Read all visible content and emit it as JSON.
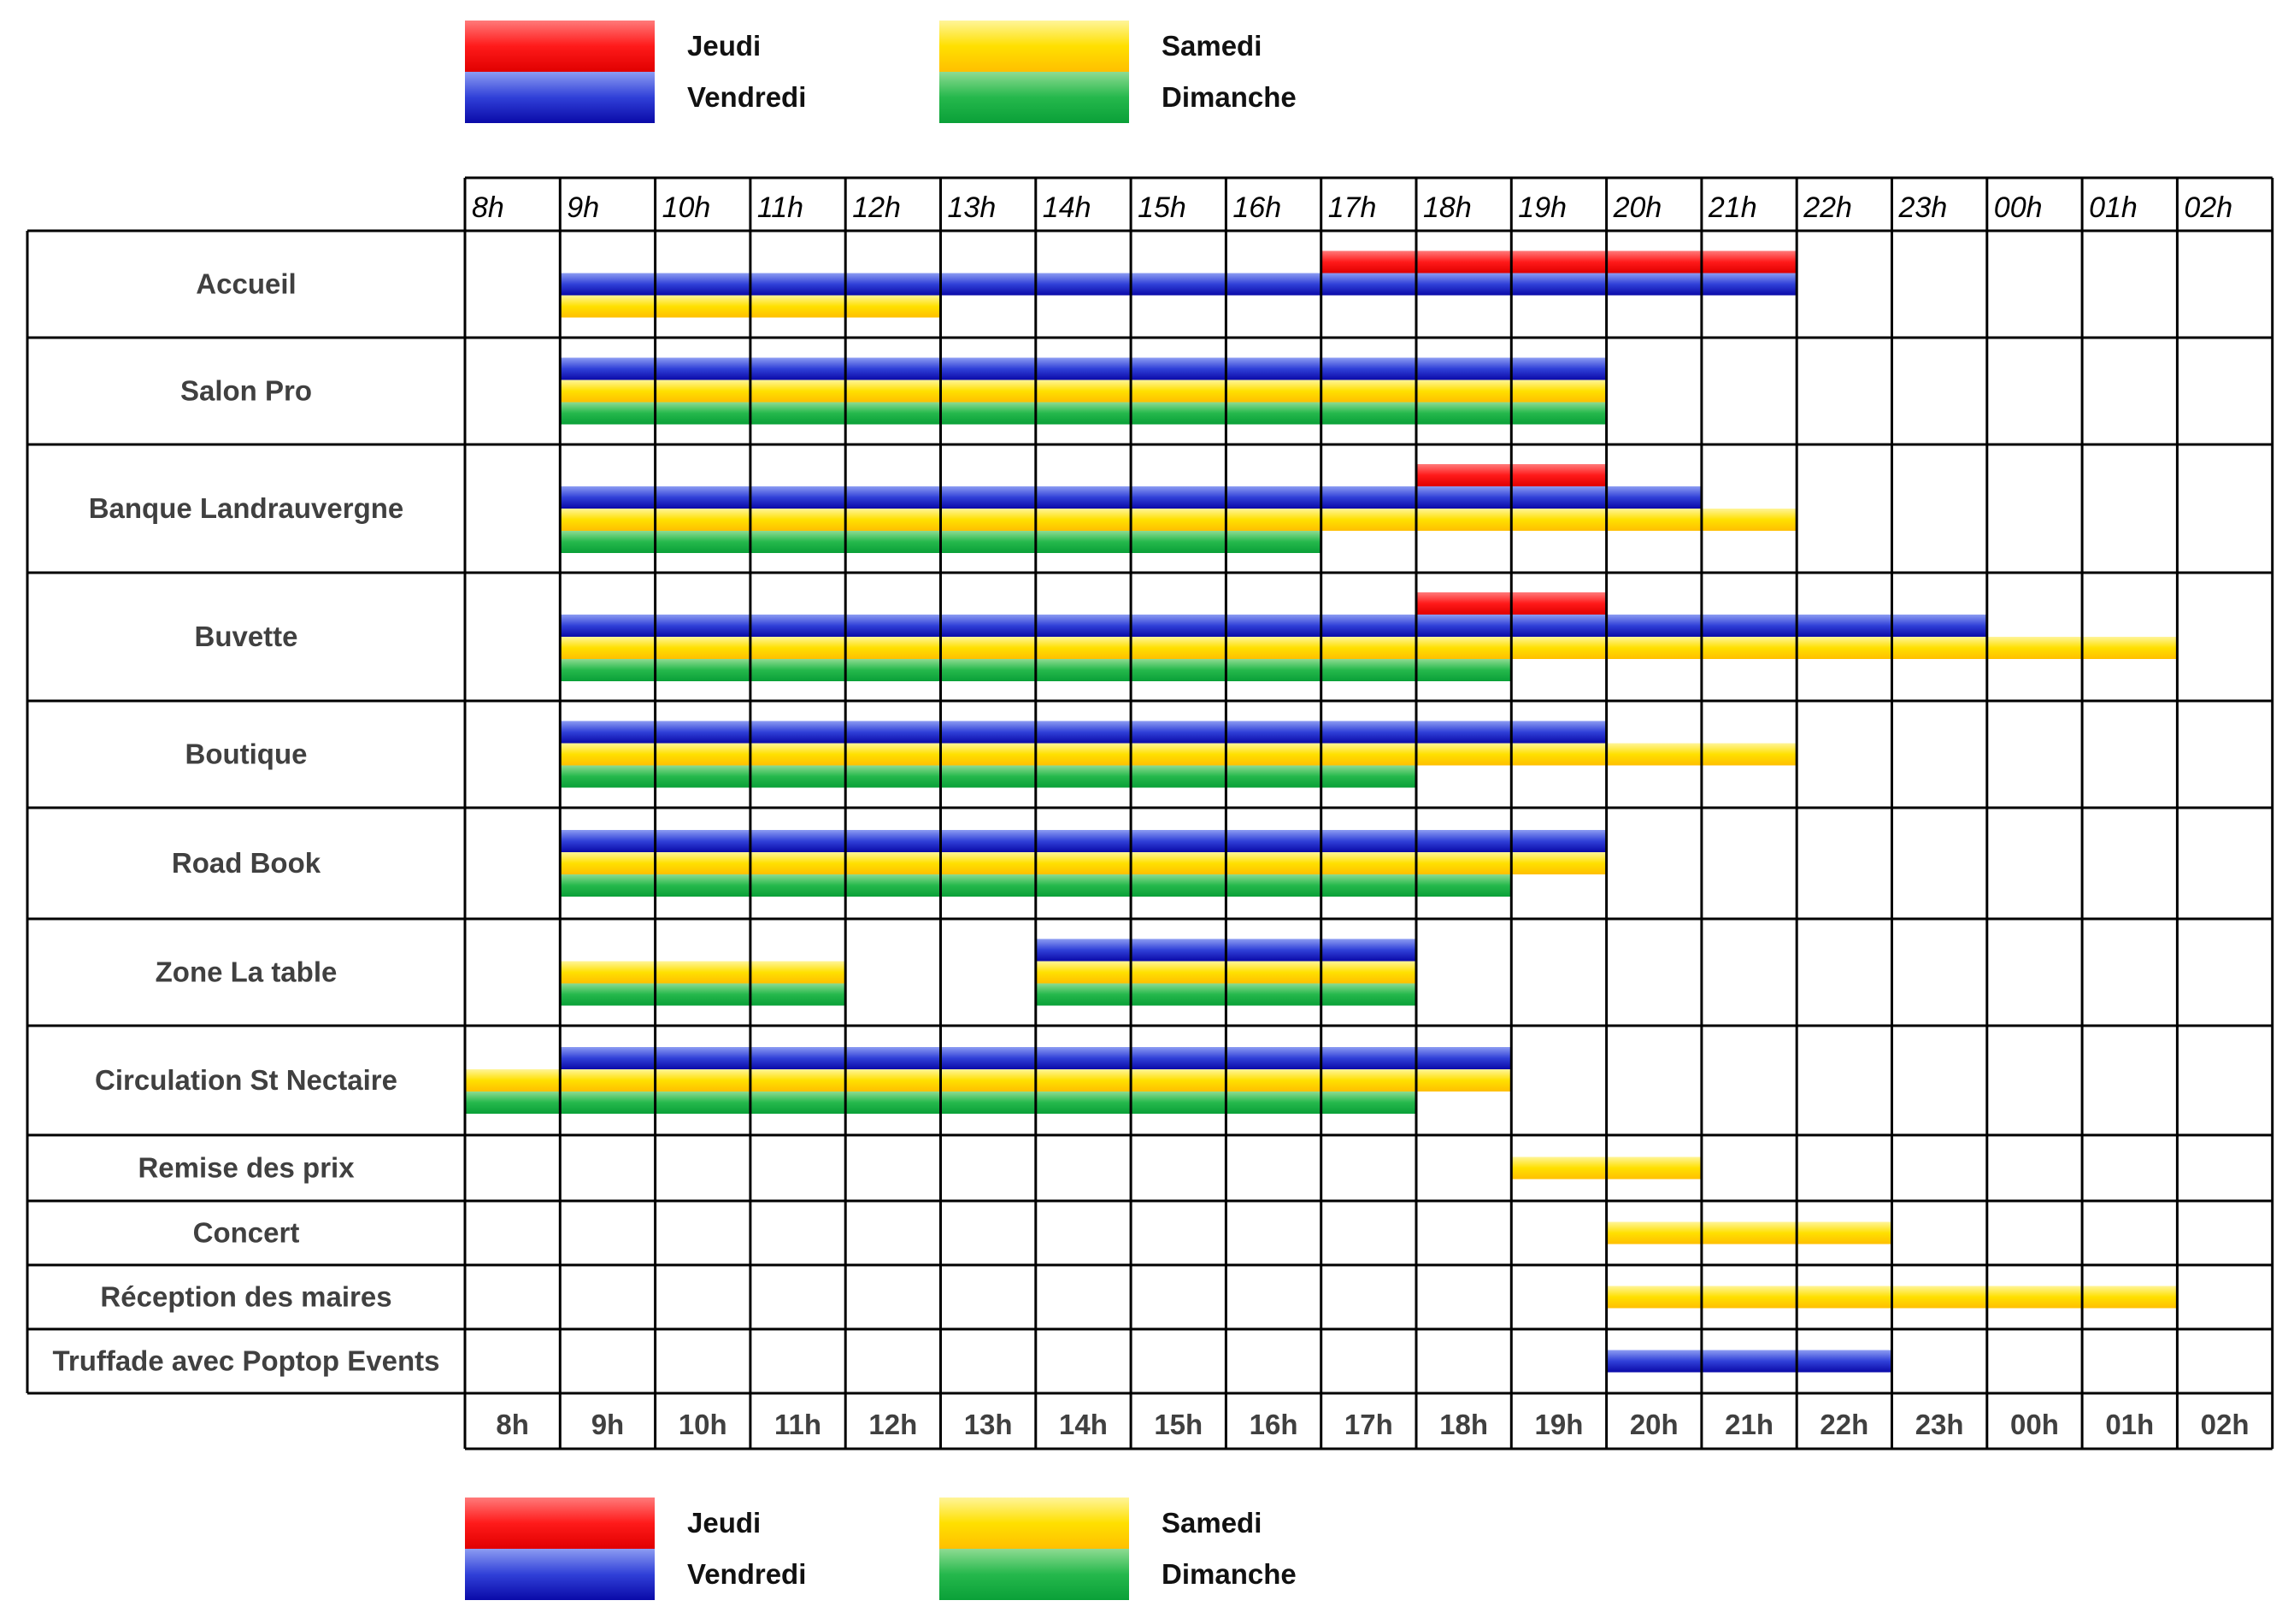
{
  "chart_data": {
    "type": "gantt",
    "hours": [
      "8h",
      "9h",
      "10h",
      "11h",
      "12h",
      "13h",
      "14h",
      "15h",
      "16h",
      "17h",
      "18h",
      "19h",
      "20h",
      "21h",
      "22h",
      "23h",
      "00h",
      "01h",
      "02h"
    ],
    "legend": [
      {
        "key": "jeudi",
        "label": "Jeudi",
        "color": "#ff2020"
      },
      {
        "key": "vendredi",
        "label": "Vendredi",
        "color": "#1a1acc"
      },
      {
        "key": "samedi",
        "label": "Samedi",
        "color": "#ffd400"
      },
      {
        "key": "dimanche",
        "label": "Dimanche",
        "color": "#12b040"
      }
    ],
    "rows": [
      {
        "label": "Accueil",
        "bars": [
          {
            "day": "jeudi",
            "start": 17,
            "end": 22
          },
          {
            "day": "vendredi",
            "start": 9,
            "end": 22
          },
          {
            "day": "samedi",
            "start": 9,
            "end": 13
          }
        ]
      },
      {
        "label": "Salon Pro",
        "bars": [
          {
            "day": "vendredi",
            "start": 9,
            "end": 20
          },
          {
            "day": "samedi",
            "start": 9,
            "end": 20
          },
          {
            "day": "dimanche",
            "start": 9,
            "end": 20
          }
        ]
      },
      {
        "label": "Banque Landrauvergne",
        "bars": [
          {
            "day": "jeudi",
            "start": 18,
            "end": 20
          },
          {
            "day": "vendredi",
            "start": 9,
            "end": 21
          },
          {
            "day": "samedi",
            "start": 9,
            "end": 22
          },
          {
            "day": "dimanche",
            "start": 9,
            "end": 17
          }
        ]
      },
      {
        "label": "Buvette",
        "bars": [
          {
            "day": "jeudi",
            "start": 18,
            "end": 20
          },
          {
            "day": "vendredi",
            "start": 9,
            "end": 24
          },
          {
            "day": "samedi",
            "start": 9,
            "end": 26
          },
          {
            "day": "dimanche",
            "start": 9,
            "end": 19
          }
        ]
      },
      {
        "label": "Boutique",
        "bars": [
          {
            "day": "vendredi",
            "start": 9,
            "end": 20
          },
          {
            "day": "samedi",
            "start": 9,
            "end": 22
          },
          {
            "day": "dimanche",
            "start": 9,
            "end": 18
          }
        ]
      },
      {
        "label": "Road Book",
        "bars": [
          {
            "day": "vendredi",
            "start": 9,
            "end": 20
          },
          {
            "day": "samedi",
            "start": 9,
            "end": 20
          },
          {
            "day": "dimanche",
            "start": 9,
            "end": 19
          }
        ]
      },
      {
        "label": "Zone La table",
        "bars": [
          {
            "day": "vendredi",
            "start": 14,
            "end": 18
          },
          {
            "day": "samedi",
            "start": 9,
            "end": 12
          },
          {
            "day": "samedi",
            "start": 14,
            "end": 18
          },
          {
            "day": "dimanche",
            "start": 9,
            "end": 12
          },
          {
            "day": "dimanche",
            "start": 14,
            "end": 18
          }
        ]
      },
      {
        "label": "Circulation St Nectaire",
        "bars": [
          {
            "day": "vendredi",
            "start": 9,
            "end": 19
          },
          {
            "day": "samedi",
            "start": 8,
            "end": 19
          },
          {
            "day": "dimanche",
            "start": 8,
            "end": 18
          }
        ]
      },
      {
        "label": "Remise des prix",
        "bars": [
          {
            "day": "samedi",
            "start": 19,
            "end": 21
          }
        ]
      },
      {
        "label": "Concert",
        "bars": [
          {
            "day": "samedi",
            "start": 20,
            "end": 23
          }
        ]
      },
      {
        "label": "Réception des maires",
        "bars": [
          {
            "day": "samedi",
            "start": 20,
            "end": 26
          }
        ]
      },
      {
        "label": "Truffade avec Poptop Events",
        "bars": [
          {
            "day": "vendredi",
            "start": 20,
            "end": 23
          }
        ]
      }
    ]
  }
}
